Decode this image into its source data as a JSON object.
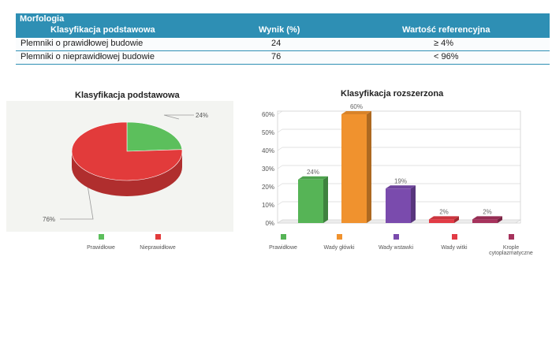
{
  "table": {
    "section": "Morfologia",
    "headers": [
      "Klasyfikacja podstawowa",
      "Wynik (%)",
      "Wartość referencyjna"
    ],
    "rows": [
      [
        "Plemniki o prawidłowej budowie",
        "24",
        "≥ 4%"
      ],
      [
        "Plemniki o nieprawidłowej budowie",
        "76",
        "< 96%"
      ]
    ]
  },
  "chart_data": [
    {
      "type": "pie",
      "title": "Klasyfikacja podstawowa",
      "labels": [
        "Prawidłowe",
        "Nieprawidłowe"
      ],
      "values": [
        24,
        76
      ],
      "value_labels": [
        "24%",
        "76%"
      ],
      "colors": [
        "#5cbf5c",
        "#e23b3b"
      ],
      "legend": "bottom"
    },
    {
      "type": "bar",
      "title": "Klasyfikacja rozszerzona",
      "categories": [
        "Prawidłowe",
        "Wady główki",
        "Wady wstawki",
        "Wady witki",
        "Krople cytoplazmatyczne"
      ],
      "values": [
        24,
        60,
        19,
        2,
        2
      ],
      "value_labels": [
        "24%",
        "60%",
        "19%",
        "2%",
        "2%"
      ],
      "colors": [
        "#56b456",
        "#f0922e",
        "#7a4bad",
        "#e23b45",
        "#a6325c"
      ],
      "ylim": [
        0,
        60
      ],
      "yticks": [
        "0%",
        "10%",
        "20%",
        "30%",
        "40%",
        "50%",
        "60%"
      ],
      "grid": true,
      "legend": "bottom"
    }
  ]
}
